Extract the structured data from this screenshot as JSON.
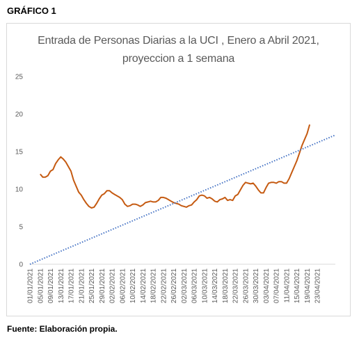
{
  "figure_label": "GRÁFICO 1",
  "source_note": "Fuente: Elaboración propia.",
  "chart_data": {
    "type": "line",
    "title_line1": "Entrada de Personas Diarias a la UCI , Enero a Abril 2021,",
    "title_line2": "proyeccion a 1 semana",
    "ylim": [
      0,
      25
    ],
    "yticks": [
      0,
      5,
      10,
      15,
      20,
      25
    ],
    "grid": false,
    "x_ticks": [
      "01/01/2021",
      "05/01/2021",
      "09/01/2021",
      "13/01/2021",
      "17/01/2021",
      "21/01/2021",
      "25/01/2021",
      "29/01/2021",
      "02/02/2021",
      "06/02/2021",
      "10/02/2021",
      "14/02/2021",
      "18/02/2021",
      "22/02/2021",
      "26/02/2021",
      "02/03/2021",
      "06/03/2021",
      "10/03/2021",
      "14/03/2021",
      "18/03/2021",
      "22/03/2021",
      "26/03/2021",
      "30/03/2021",
      "03/04/2021",
      "07/04/2021",
      "11/04/2021",
      "15/04/2021",
      "19/04/2021",
      "23/04/2021"
    ],
    "series": [
      {
        "style": "solid",
        "color": "#c55a11",
        "points": [
          [
            "05/01/2021",
            12.0
          ],
          [
            "06/01/2021",
            11.6
          ],
          [
            "07/01/2021",
            11.6
          ],
          [
            "08/01/2021",
            11.8
          ],
          [
            "09/01/2021",
            12.4
          ],
          [
            "10/01/2021",
            12.6
          ],
          [
            "11/01/2021",
            13.4
          ],
          [
            "12/01/2021",
            13.9
          ],
          [
            "13/01/2021",
            14.3
          ],
          [
            "14/01/2021",
            14.0
          ],
          [
            "15/01/2021",
            13.6
          ],
          [
            "16/01/2021",
            13.0
          ],
          [
            "17/01/2021",
            12.4
          ],
          [
            "18/01/2021",
            11.2
          ],
          [
            "19/01/2021",
            10.4
          ],
          [
            "20/01/2021",
            9.6
          ],
          [
            "21/01/2021",
            9.2
          ],
          [
            "22/01/2021",
            8.6
          ],
          [
            "23/01/2021",
            8.1
          ],
          [
            "24/01/2021",
            7.7
          ],
          [
            "25/01/2021",
            7.5
          ],
          [
            "26/01/2021",
            7.6
          ],
          [
            "27/01/2021",
            8.1
          ],
          [
            "28/01/2021",
            8.7
          ],
          [
            "29/01/2021",
            9.2
          ],
          [
            "30/01/2021",
            9.4
          ],
          [
            "31/01/2021",
            9.8
          ],
          [
            "01/02/2021",
            9.8
          ],
          [
            "02/02/2021",
            9.5
          ],
          [
            "03/02/2021",
            9.3
          ],
          [
            "04/02/2021",
            9.1
          ],
          [
            "05/02/2021",
            8.9
          ],
          [
            "06/02/2021",
            8.6
          ],
          [
            "07/02/2021",
            8.0
          ],
          [
            "08/02/2021",
            7.7
          ],
          [
            "09/02/2021",
            7.8
          ],
          [
            "10/02/2021",
            8.0
          ],
          [
            "11/02/2021",
            8.0
          ],
          [
            "12/02/2021",
            7.9
          ],
          [
            "13/02/2021",
            7.7
          ],
          [
            "14/02/2021",
            7.9
          ],
          [
            "15/02/2021",
            8.2
          ],
          [
            "16/02/2021",
            8.3
          ],
          [
            "17/02/2021",
            8.4
          ],
          [
            "18/02/2021",
            8.3
          ],
          [
            "19/02/2021",
            8.3
          ],
          [
            "20/02/2021",
            8.5
          ],
          [
            "21/02/2021",
            8.9
          ],
          [
            "22/02/2021",
            8.9
          ],
          [
            "23/02/2021",
            8.8
          ],
          [
            "24/02/2021",
            8.6
          ],
          [
            "25/02/2021",
            8.4
          ],
          [
            "26/02/2021",
            8.2
          ],
          [
            "27/02/2021",
            8.1
          ],
          [
            "28/02/2021",
            8.0
          ],
          [
            "01/03/2021",
            7.8
          ],
          [
            "02/03/2021",
            7.7
          ],
          [
            "03/03/2021",
            7.6
          ],
          [
            "04/03/2021",
            7.8
          ],
          [
            "05/03/2021",
            7.9
          ],
          [
            "06/03/2021",
            8.3
          ],
          [
            "07/03/2021",
            8.6
          ],
          [
            "08/03/2021",
            9.1
          ],
          [
            "09/03/2021",
            9.2
          ],
          [
            "10/03/2021",
            9.1
          ],
          [
            "11/03/2021",
            8.8
          ],
          [
            "12/03/2021",
            8.9
          ],
          [
            "13/03/2021",
            8.7
          ],
          [
            "14/03/2021",
            8.4
          ],
          [
            "15/03/2021",
            8.3
          ],
          [
            "16/03/2021",
            8.6
          ],
          [
            "17/03/2021",
            8.7
          ],
          [
            "18/03/2021",
            8.9
          ],
          [
            "19/03/2021",
            8.5
          ],
          [
            "20/03/2021",
            8.6
          ],
          [
            "21/03/2021",
            8.5
          ],
          [
            "22/03/2021",
            9.1
          ],
          [
            "23/03/2021",
            9.3
          ],
          [
            "24/03/2021",
            9.9
          ],
          [
            "25/03/2021",
            10.5
          ],
          [
            "26/03/2021",
            10.9
          ],
          [
            "27/03/2021",
            10.8
          ],
          [
            "28/03/2021",
            10.7
          ],
          [
            "29/03/2021",
            10.8
          ],
          [
            "30/03/2021",
            10.4
          ],
          [
            "31/03/2021",
            9.9
          ],
          [
            "01/04/2021",
            9.5
          ],
          [
            "02/04/2021",
            9.5
          ],
          [
            "03/04/2021",
            10.2
          ],
          [
            "04/04/2021",
            10.8
          ],
          [
            "05/04/2021",
            10.9
          ],
          [
            "06/04/2021",
            10.9
          ],
          [
            "07/04/2021",
            10.8
          ],
          [
            "08/04/2021",
            11.0
          ],
          [
            "09/04/2021",
            11.0
          ],
          [
            "10/04/2021",
            10.8
          ],
          [
            "11/04/2021",
            10.8
          ],
          [
            "12/04/2021",
            11.4
          ],
          [
            "13/04/2021",
            12.2
          ],
          [
            "14/04/2021",
            13.0
          ],
          [
            "15/04/2021",
            13.8
          ],
          [
            "16/04/2021",
            14.8
          ],
          [
            "17/04/2021",
            15.8
          ],
          [
            "18/04/2021",
            16.6
          ],
          [
            "19/04/2021",
            17.4
          ],
          [
            "20/04/2021",
            18.6
          ]
        ]
      },
      {
        "style": "dotted",
        "color": "#4472c4",
        "points": [
          [
            "01/01/2021",
            0.0
          ],
          [
            "30/04/2021",
            17.2
          ]
        ]
      }
    ]
  }
}
